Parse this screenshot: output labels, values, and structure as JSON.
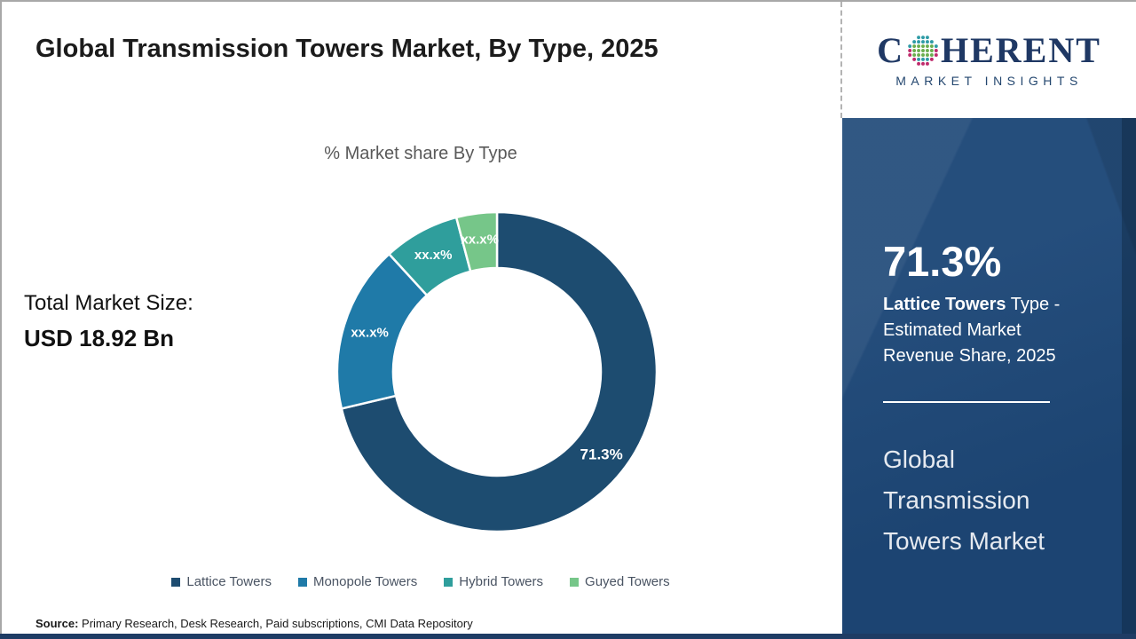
{
  "page": {
    "title": "Global Transmission Towers Market, By Type, 2025",
    "source_label": "Source:",
    "source_text": " Primary Research, Desk Research, Paid subscriptions, CMI Data Repository"
  },
  "main": {
    "total_market_label": "Total Market Size:",
    "total_market_value": "USD 18.92 Bn"
  },
  "chart_data": {
    "type": "pie",
    "subtype": "donut",
    "title": "% Market share By Type",
    "categories": [
      "Lattice Towers",
      "Monopole Towers",
      "Hybrid Towers",
      "Guyed Towers"
    ],
    "values": [
      71.3,
      16.9,
      7.7,
      4.1
    ],
    "value_labels": [
      "71.3%",
      "xx.x%",
      "xx.x%",
      "xx.x%"
    ],
    "colors": [
      "#1d4c70",
      "#1f7aa8",
      "#2f9e9c",
      "#76c689"
    ],
    "legend_position": "bottom",
    "start_angle_deg": 0,
    "direction": "clockwise",
    "inner_radius_ratio": 0.65,
    "note": "Only the 71.3% Lattice Towers share is shown; other slice values are masked as xx.x% (drawn values estimated from arc angles)"
  },
  "sidebar": {
    "stat_value": "71.3%",
    "stat_bold": "Lattice Towers",
    "stat_rest": " Type - Estimated Market Revenue Share, 2025",
    "panel_title": "Global Transmission Towers Market",
    "panel_bg": "#1e4878"
  },
  "logo": {
    "brand_first_letter": "C",
    "brand_rest": "HERENT",
    "subtitle": "MARKET INSIGHTS",
    "brand_color": "#1f3864",
    "globe_colors": {
      "teal": "#2e9ba6",
      "green": "#6aae4e",
      "magenta": "#bf2a6b"
    }
  }
}
